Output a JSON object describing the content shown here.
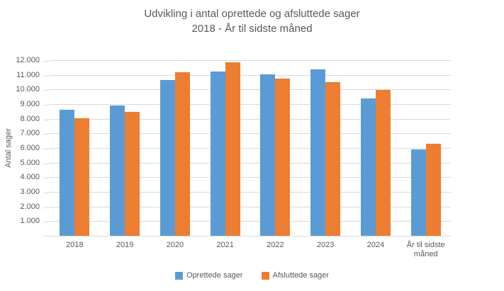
{
  "title": {
    "line1": "Udvikling i antal oprettede og afsluttede sager",
    "line2": "2018 - År til sidste måned"
  },
  "y_axis": {
    "title": "Antal sager",
    "tick_labels": [
      "12.000",
      "11.000",
      "10.000",
      "9.000",
      "8.000",
      "7.000",
      "6.000",
      "5.000",
      "4.000",
      "3.000",
      "2.000",
      "1.000"
    ]
  },
  "legend": {
    "items": [
      {
        "label": "Oprettede sager",
        "color": "#5B9BD5"
      },
      {
        "label": "Afsluttede sager",
        "color": "#ED7D31"
      }
    ]
  },
  "colors": {
    "series_blue": "#5B9BD5",
    "series_orange": "#ED7D31",
    "gridline": "#D9D9D9",
    "axis_line": "#D9D9D9",
    "text": "#595959"
  },
  "chart_data": {
    "type": "bar",
    "title": "Udvikling i antal oprettede og afsluttede sager 2018 - År til sidste måned",
    "categories": [
      "2018",
      "2019",
      "2020",
      "2021",
      "2022",
      "2023",
      "2024",
      "År til sidste måned"
    ],
    "series": [
      {
        "name": "Oprettede sager",
        "color": "#5B9BD5",
        "values": [
          8600,
          8900,
          10650,
          11250,
          11050,
          11350,
          9400,
          5900
        ]
      },
      {
        "name": "Afsluttede sager",
        "color": "#ED7D31",
        "values": [
          8050,
          8450,
          11200,
          11850,
          10750,
          10500,
          9950,
          6300
        ]
      }
    ],
    "xlabel": "",
    "ylabel": "Antal sager",
    "ylim": [
      0,
      12000
    ],
    "ytick_step": 1000,
    "ytick_format": "thousands-dot",
    "grid": true,
    "legend_position": "bottom"
  }
}
